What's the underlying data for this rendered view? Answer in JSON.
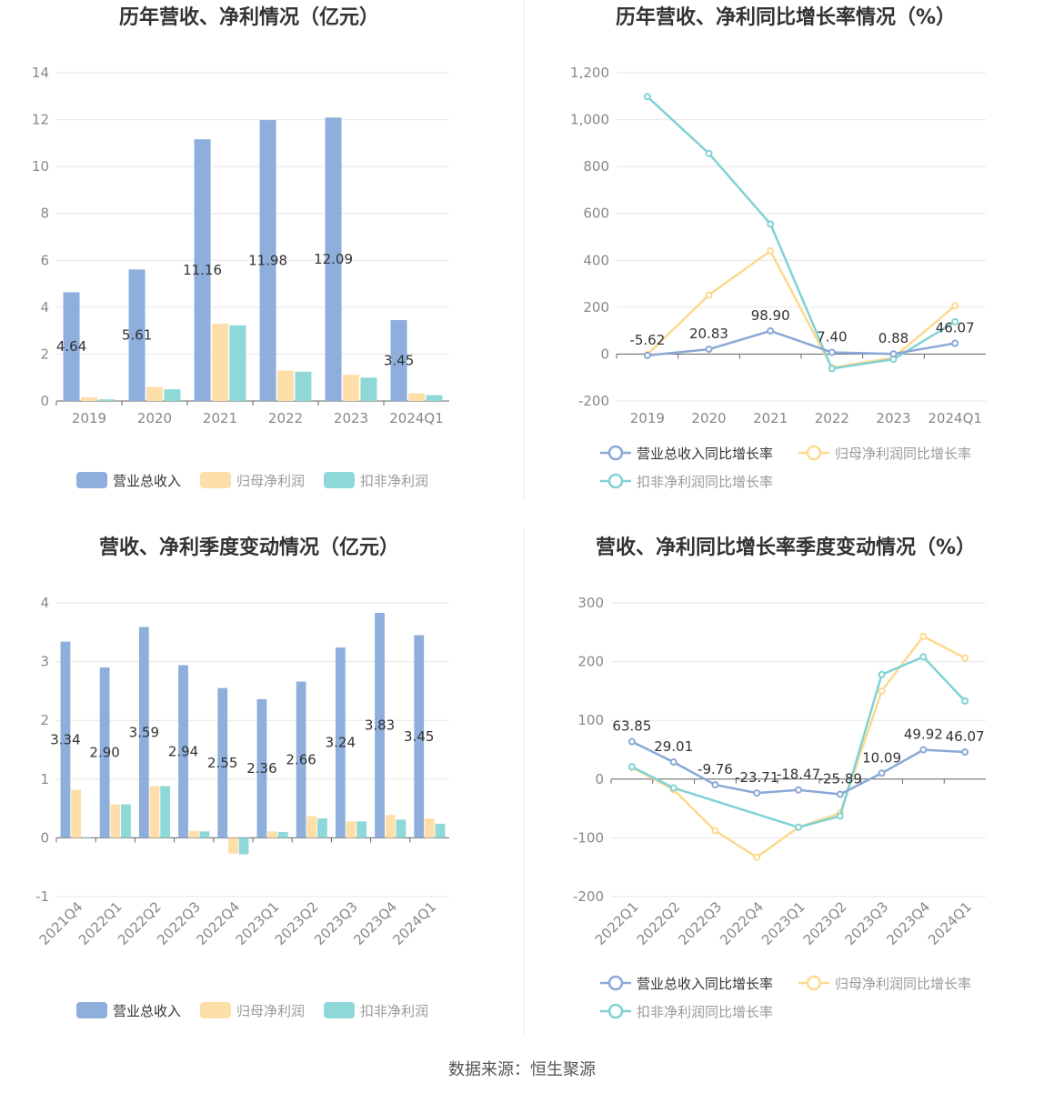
{
  "colors": {
    "revenue": "#8eaedc",
    "netprofit": "#fedfa9",
    "deducted": "#8fd8d8",
    "revenue_growth": "#8aa8d8",
    "netprofit_growth": "#fdd98f",
    "deducted_growth": "#80d2d4",
    "grid": "#e6e6e6",
    "axis": "#666666",
    "title": "#333333",
    "tick": "#888888",
    "legend_inactive": "#999999"
  },
  "footer": {
    "source": "数据来源：恒生聚源"
  },
  "chart_data": [
    {
      "id": "annual-amount",
      "type": "bar",
      "title": "历年营收、净利情况（亿元）",
      "categories": [
        "2019",
        "2020",
        "2021",
        "2022",
        "2023",
        "2024Q1"
      ],
      "ylim": [
        0,
        14
      ],
      "yticks": [
        0,
        2,
        4,
        6,
        8,
        10,
        12,
        14
      ],
      "ytick_labels": [
        "0",
        "2",
        "4",
        "6",
        "8",
        "10",
        "12",
        "14"
      ],
      "grid": true,
      "legend_position": "bottom",
      "series": [
        {
          "name": "营业总收入",
          "color_key": "revenue",
          "values": [
            4.64,
            5.61,
            11.16,
            11.98,
            12.09,
            3.45
          ],
          "labels": [
            "4.64",
            "5.61",
            "11.16",
            "11.98",
            "12.09",
            "3.45"
          ]
        },
        {
          "name": "归母净利润",
          "color_key": "netprofit",
          "values": [
            0.16,
            0.6,
            3.3,
            1.3,
            1.12,
            0.33
          ]
        },
        {
          "name": "扣非净利润",
          "color_key": "deducted",
          "values": [
            0.07,
            0.5,
            3.23,
            1.25,
            1.0,
            0.25
          ]
        }
      ]
    },
    {
      "id": "annual-growth",
      "type": "line",
      "title": "历年营收、净利同比增长率情况（%）",
      "categories": [
        "2019",
        "2020",
        "2021",
        "2022",
        "2023",
        "2024Q1"
      ],
      "ylim": [
        -200,
        1200
      ],
      "yticks": [
        -200,
        0,
        200,
        400,
        600,
        800,
        1000,
        1200
      ],
      "ytick_labels": [
        "-200",
        "0",
        "200",
        "400",
        "600",
        "800",
        "1,000",
        "1,200"
      ],
      "grid": true,
      "legend_position": "bottom",
      "series": [
        {
          "name": "营业总收入同比增长率",
          "color_key": "revenue_growth",
          "values": [
            -5.62,
            20.83,
            98.9,
            7.4,
            0.88,
            46.07
          ],
          "labels": [
            "-5.62",
            "20.83",
            "98.90",
            "7.40",
            "0.88",
            "46.07"
          ],
          "active": true
        },
        {
          "name": "归母净利润同比增长率",
          "color_key": "netprofit_growth",
          "values": [
            -2,
            252,
            440,
            -58,
            -15,
            206
          ],
          "active": false
        },
        {
          "name": "扣非净利润同比增长率",
          "color_key": "deducted_growth",
          "values": [
            1098,
            856,
            555,
            -62,
            -22,
            138
          ],
          "active": false
        }
      ]
    },
    {
      "id": "quarterly-amount",
      "type": "bar",
      "title": "营收、净利季度变动情况（亿元）",
      "categories": [
        "2021Q4",
        "2022Q1",
        "2022Q2",
        "2022Q3",
        "2022Q4",
        "2023Q1",
        "2023Q2",
        "2023Q3",
        "2023Q4",
        "2024Q1"
      ],
      "ylim": [
        -1,
        4
      ],
      "yticks": [
        -1,
        0,
        1,
        2,
        3,
        4
      ],
      "ytick_labels": [
        "-1",
        "0",
        "1",
        "2",
        "3",
        "4"
      ],
      "grid": true,
      "legend_position": "bottom",
      "series": [
        {
          "name": "营业总收入",
          "color_key": "revenue",
          "values": [
            3.34,
            2.9,
            3.59,
            2.94,
            2.55,
            2.36,
            2.66,
            3.24,
            3.83,
            3.45
          ],
          "labels": [
            "3.34",
            "2.90",
            "3.59",
            "2.94",
            "2.55",
            "2.36",
            "2.66",
            "3.24",
            "3.83",
            "3.45"
          ]
        },
        {
          "name": "归母净利润",
          "color_key": "netprofit",
          "values": [
            0.82,
            0.57,
            0.88,
            0.12,
            -0.27,
            0.11,
            0.37,
            0.28,
            0.39,
            0.33
          ]
        },
        {
          "name": "扣非净利润",
          "color_key": "deducted",
          "values": [
            0.0,
            0.57,
            0.88,
            0.11,
            -0.28,
            0.1,
            0.33,
            0.28,
            0.31,
            0.24
          ]
        }
      ]
    },
    {
      "id": "quarterly-growth",
      "type": "line",
      "title": "营收、净利同比增长率季度变动情况（%）",
      "categories": [
        "2022Q1",
        "2022Q2",
        "2022Q3",
        "2022Q4",
        "2023Q1",
        "2023Q2",
        "2023Q3",
        "2023Q4",
        "2024Q1"
      ],
      "ylim": [
        -200,
        300
      ],
      "yticks": [
        -200,
        -100,
        0,
        100,
        200,
        300
      ],
      "ytick_labels": [
        "-200",
        "-100",
        "0",
        "100",
        "200",
        "300"
      ],
      "grid": true,
      "legend_position": "bottom",
      "series": [
        {
          "name": "营业总收入同比增长率",
          "color_key": "revenue_growth",
          "values": [
            63.85,
            29.01,
            -9.76,
            -23.71,
            -18.47,
            -25.89,
            10.09,
            49.92,
            46.07
          ],
          "labels": [
            "63.85",
            "29.01",
            "-9.76",
            "-23.71",
            "-18.47",
            "-25.89",
            "10.09",
            "49.92",
            "46.07"
          ],
          "active": true
        },
        {
          "name": "归母净利润同比增长率",
          "color_key": "netprofit_growth",
          "values": [
            20,
            -18,
            -88,
            -133,
            -82,
            -58,
            150,
            243,
            206
          ],
          "active": false
        },
        {
          "name": "扣非净利润同比增长率",
          "color_key": "deducted_growth",
          "values": [
            21,
            -15,
            null,
            null,
            -82,
            -63,
            178,
            208,
            133
          ],
          "active": false
        }
      ]
    }
  ]
}
